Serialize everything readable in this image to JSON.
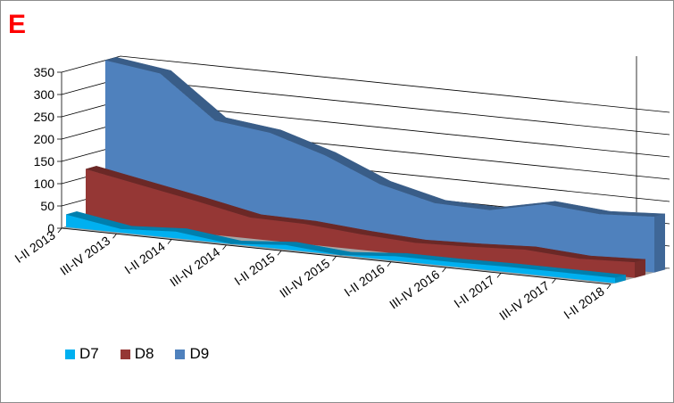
{
  "panel_label": "E",
  "chart_data": {
    "type": "area",
    "view": "3d",
    "categories": [
      "I-II 2013",
      "III-IV 2013",
      "I-II 2014",
      "III-IV 2014",
      "I-II 2015",
      "III-IV 2015",
      "I-II 2016",
      "III-IV 2016",
      "I-II 2017",
      "III-IV 2017",
      "I-II 2018"
    ],
    "series": [
      {
        "name": "D7",
        "color": "#00b0f0",
        "values": [
          28,
          8,
          15,
          0,
          10,
          0,
          10,
          10,
          12,
          12,
          12
        ]
      },
      {
        "name": "D8",
        "color": "#953735",
        "values": [
          118,
          95,
          72,
          47,
          45,
          35,
          28,
          32,
          38,
          30,
          35
        ]
      },
      {
        "name": "D9",
        "color": "#4f81bd",
        "values": [
          350,
          333,
          240,
          225,
          187,
          135,
          105,
          102,
          128,
          118,
          125
        ]
      }
    ],
    "ylim": [
      0,
      350
    ],
    "yticks": [
      0,
      50,
      100,
      150,
      200,
      250,
      300,
      350
    ],
    "xlabel": "",
    "ylabel": "",
    "grid": true,
    "legend_position": "bottom-left"
  }
}
